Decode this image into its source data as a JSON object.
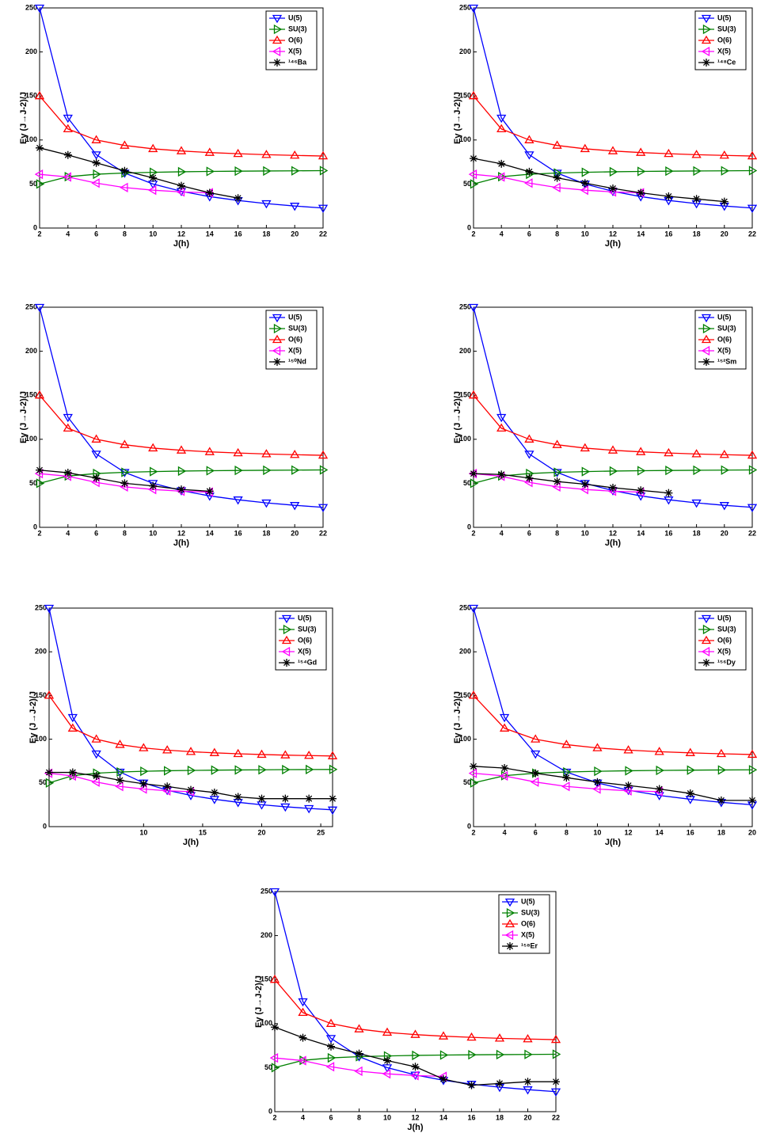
{
  "chart_data": [
    {
      "type": "line",
      "xlabel": "J(h)",
      "ylabel": "Eγ (J→J-2)/J",
      "legend": "upper right",
      "x": [
        2,
        4,
        6,
        8,
        10,
        12,
        14,
        16,
        18,
        20,
        22
      ],
      "xlim": [
        2,
        22
      ],
      "xticks": [
        2,
        4,
        6,
        8,
        10,
        12,
        14,
        16,
        18,
        20,
        22
      ],
      "ylim": [
        0,
        250
      ],
      "yticks": [
        0,
        50,
        100,
        150,
        200,
        250
      ],
      "series": [
        {
          "name": "U(5)",
          "color": "#0000ff",
          "marker": "v",
          "values": [
            250,
            125,
            83.3,
            62.5,
            50,
            41.7,
            35.7,
            31.3,
            27.8,
            25,
            22.7
          ]
        },
        {
          "name": "SU(3)",
          "color": "#008000",
          "marker": ">",
          "values": [
            50,
            58.3,
            61.1,
            62.5,
            63.3,
            63.9,
            64.3,
            64.6,
            64.8,
            65,
            65.2
          ]
        },
        {
          "name": "O(6)",
          "color": "#ff0000",
          "marker": "^",
          "values": [
            150,
            112.5,
            100,
            93.8,
            90,
            87.5,
            85.7,
            84.4,
            83.3,
            82.5,
            81.8
          ]
        },
        {
          "name": "X(5)",
          "color": "#ff00ff",
          "marker": "<",
          "values": [
            61,
            58,
            51,
            46,
            43,
            41,
            40,
            null,
            null,
            null,
            null
          ]
        },
        {
          "name": "¹⁴⁶Ba",
          "color": "#000000",
          "marker": "*",
          "values": [
            91,
            83,
            74,
            65,
            57,
            48,
            40,
            34,
            null,
            null,
            null
          ]
        }
      ]
    },
    {
      "type": "line",
      "xlabel": "J(h)",
      "ylabel": "Eγ (J→J-2)/J",
      "legend": "upper right",
      "x": [
        2,
        4,
        6,
        8,
        10,
        12,
        14,
        16,
        18,
        20,
        22
      ],
      "xlim": [
        2,
        22
      ],
      "xticks": [
        2,
        4,
        6,
        8,
        10,
        12,
        14,
        16,
        18,
        20,
        22
      ],
      "ylim": [
        0,
        250
      ],
      "yticks": [
        0,
        50,
        100,
        150,
        200,
        250
      ],
      "series": [
        {
          "name": "U(5)",
          "color": "#0000ff",
          "marker": "v",
          "values": [
            250,
            125,
            83.3,
            62.5,
            50,
            41.7,
            35.7,
            31.3,
            27.8,
            25,
            22.7
          ]
        },
        {
          "name": "SU(3)",
          "color": "#008000",
          "marker": ">",
          "values": [
            50,
            58.3,
            61.1,
            62.5,
            63.3,
            63.9,
            64.3,
            64.6,
            64.8,
            65,
            65.2
          ]
        },
        {
          "name": "O(6)",
          "color": "#ff0000",
          "marker": "^",
          "values": [
            150,
            112.5,
            100,
            93.8,
            90,
            87.5,
            85.7,
            84.4,
            83.3,
            82.5,
            81.8
          ]
        },
        {
          "name": "X(5)",
          "color": "#ff00ff",
          "marker": "<",
          "values": [
            61,
            58,
            51,
            46,
            43,
            41,
            40,
            null,
            null,
            null,
            null
          ]
        },
        {
          "name": "¹⁴⁸Ce",
          "color": "#000000",
          "marker": "*",
          "values": [
            79,
            73,
            64,
            57,
            51,
            45,
            40,
            36,
            33,
            30,
            null
          ]
        }
      ]
    },
    {
      "type": "line",
      "xlabel": "J(h)",
      "ylabel": "Eγ (J→J-2)/J",
      "legend": "upper right",
      "x": [
        2,
        4,
        6,
        8,
        10,
        12,
        14,
        16,
        18,
        20,
        22
      ],
      "xlim": [
        2,
        22
      ],
      "xticks": [
        2,
        4,
        6,
        8,
        10,
        12,
        14,
        16,
        18,
        20,
        22
      ],
      "ylim": [
        0,
        250
      ],
      "yticks": [
        0,
        50,
        100,
        150,
        200,
        250
      ],
      "series": [
        {
          "name": "U(5)",
          "color": "#0000ff",
          "marker": "v",
          "values": [
            250,
            125,
            83.3,
            62.5,
            50,
            41.7,
            35.7,
            31.3,
            27.8,
            25,
            22.7
          ]
        },
        {
          "name": "SU(3)",
          "color": "#008000",
          "marker": ">",
          "values": [
            50,
            58.3,
            61.1,
            62.5,
            63.3,
            63.9,
            64.3,
            64.6,
            64.8,
            65,
            65.2
          ]
        },
        {
          "name": "O(6)",
          "color": "#ff0000",
          "marker": "^",
          "values": [
            150,
            112.5,
            100,
            93.8,
            90,
            87.5,
            85.7,
            84.4,
            83.3,
            82.5,
            81.8
          ]
        },
        {
          "name": "X(5)",
          "color": "#ff00ff",
          "marker": "<",
          "values": [
            61,
            58,
            51,
            46,
            43,
            41,
            40,
            null,
            null,
            null,
            null
          ]
        },
        {
          "name": "¹⁵⁰Nd",
          "color": "#000000",
          "marker": "*",
          "values": [
            65,
            62,
            56,
            50,
            47,
            43,
            41,
            null,
            null,
            null,
            null
          ]
        }
      ]
    },
    {
      "type": "line",
      "xlabel": "J(h)",
      "ylabel": "Eγ (J→J-2)/J",
      "legend": "upper right",
      "x": [
        2,
        4,
        6,
        8,
        10,
        12,
        14,
        16,
        18,
        20,
        22
      ],
      "xlim": [
        2,
        22
      ],
      "xticks": [
        2,
        4,
        6,
        8,
        10,
        12,
        14,
        16,
        18,
        20,
        22
      ],
      "ylim": [
        0,
        250
      ],
      "yticks": [
        0,
        50,
        100,
        150,
        200,
        250
      ],
      "series": [
        {
          "name": "U(5)",
          "color": "#0000ff",
          "marker": "v",
          "values": [
            250,
            125,
            83.3,
            62.5,
            50,
            41.7,
            35.7,
            31.3,
            27.8,
            25,
            22.7
          ]
        },
        {
          "name": "SU(3)",
          "color": "#008000",
          "marker": ">",
          "values": [
            50,
            58.3,
            61.1,
            62.5,
            63.3,
            63.9,
            64.3,
            64.6,
            64.8,
            65,
            65.2
          ]
        },
        {
          "name": "O(6)",
          "color": "#ff0000",
          "marker": "^",
          "values": [
            150,
            112.5,
            100,
            93.8,
            90,
            87.5,
            85.7,
            84.4,
            83.3,
            82.5,
            81.8
          ]
        },
        {
          "name": "X(5)",
          "color": "#ff00ff",
          "marker": "<",
          "values": [
            61,
            58,
            51,
            46,
            43,
            41,
            40,
            null,
            null,
            null,
            null
          ]
        },
        {
          "name": "¹⁵²Sm",
          "color": "#000000",
          "marker": "*",
          "values": [
            61,
            60,
            56,
            52,
            49,
            45,
            42,
            39,
            null,
            null,
            null
          ]
        }
      ]
    },
    {
      "type": "line",
      "xlabel": "J(h)",
      "ylabel": "Eγ (J→J-2)/J",
      "legend": "upper right",
      "x": [
        2,
        4,
        6,
        8,
        10,
        12,
        14,
        16,
        18,
        20,
        22,
        24,
        26
      ],
      "xlim": [
        2,
        26
      ],
      "xticks": [
        10,
        15,
        20,
        25
      ],
      "ylim": [
        0,
        250
      ],
      "yticks": [
        0,
        50,
        100,
        150,
        200,
        250
      ],
      "series": [
        {
          "name": "U(5)",
          "color": "#0000ff",
          "marker": "v",
          "values": [
            250,
            125,
            83.3,
            62.5,
            50,
            41.7,
            35.7,
            31.3,
            27.8,
            25,
            22.7,
            20.8,
            19.2
          ]
        },
        {
          "name": "SU(3)",
          "color": "#008000",
          "marker": ">",
          "values": [
            50,
            58.3,
            61.1,
            62.5,
            63.3,
            63.9,
            64.3,
            64.6,
            64.8,
            65,
            65.2,
            65.3,
            65.4
          ]
        },
        {
          "name": "O(6)",
          "color": "#ff0000",
          "marker": "^",
          "values": [
            150,
            112.5,
            100,
            93.8,
            90,
            87.5,
            85.7,
            84.4,
            83.3,
            82.5,
            81.8,
            81.3,
            80.8
          ]
        },
        {
          "name": "X(5)",
          "color": "#ff00ff",
          "marker": "<",
          "values": [
            61,
            58,
            51,
            46,
            43,
            41,
            40,
            null,
            null,
            null,
            null,
            null,
            null
          ]
        },
        {
          "name": "¹⁵⁴Gd",
          "color": "#000000",
          "marker": "*",
          "values": [
            62,
            62,
            58,
            53,
            49,
            46,
            42,
            39,
            34,
            32,
            32,
            32,
            32
          ]
        }
      ]
    },
    {
      "type": "line",
      "xlabel": "J(h)",
      "ylabel": "Eγ (J→J-2)/J",
      "legend": "upper right",
      "x": [
        2,
        4,
        6,
        8,
        10,
        12,
        14,
        16,
        18,
        20
      ],
      "xlim": [
        2,
        20
      ],
      "xticks": [
        2,
        4,
        6,
        8,
        10,
        12,
        14,
        16,
        18,
        20
      ],
      "ylim": [
        0,
        250
      ],
      "yticks": [
        0,
        50,
        100,
        150,
        200,
        250
      ],
      "series": [
        {
          "name": "U(5)",
          "color": "#0000ff",
          "marker": "v",
          "values": [
            250,
            125,
            83.3,
            62.5,
            50,
            41.7,
            35.7,
            31.3,
            27.8,
            25
          ]
        },
        {
          "name": "SU(3)",
          "color": "#008000",
          "marker": ">",
          "values": [
            50,
            58.3,
            61.1,
            62.5,
            63.3,
            63.9,
            64.3,
            64.6,
            64.8,
            65
          ]
        },
        {
          "name": "O(6)",
          "color": "#ff0000",
          "marker": "^",
          "values": [
            150,
            112.5,
            100,
            93.8,
            90,
            87.5,
            85.7,
            84.4,
            83.3,
            82.5
          ]
        },
        {
          "name": "X(5)",
          "color": "#ff00ff",
          "marker": "<",
          "values": [
            61,
            58,
            51,
            46,
            43,
            41,
            40,
            null,
            null,
            null
          ]
        },
        {
          "name": "¹⁵⁶Dy",
          "color": "#000000",
          "marker": "*",
          "values": [
            69,
            67,
            61,
            56,
            51,
            47,
            43,
            38,
            30,
            30
          ]
        }
      ]
    },
    {
      "type": "line",
      "xlabel": "J(h)",
      "ylabel": "Eγ (J→J-2)/J",
      "legend": "upper right",
      "x": [
        2,
        4,
        6,
        8,
        10,
        12,
        14,
        16,
        18,
        20,
        22
      ],
      "xlim": [
        2,
        22
      ],
      "xticks": [
        2,
        4,
        6,
        8,
        10,
        12,
        14,
        16,
        18,
        20,
        22
      ],
      "ylim": [
        0,
        250
      ],
      "yticks": [
        0,
        50,
        100,
        150,
        200,
        250
      ],
      "series": [
        {
          "name": "U(5)",
          "color": "#0000ff",
          "marker": "v",
          "values": [
            250,
            125,
            83.3,
            62.5,
            50,
            41.7,
            35.7,
            31.3,
            27.8,
            25,
            22.7
          ]
        },
        {
          "name": "SU(3)",
          "color": "#008000",
          "marker": ">",
          "values": [
            50,
            58.3,
            61.1,
            62.5,
            63.3,
            63.9,
            64.3,
            64.6,
            64.8,
            65,
            65.2
          ]
        },
        {
          "name": "O(6)",
          "color": "#ff0000",
          "marker": "^",
          "values": [
            150,
            112.5,
            100,
            93.8,
            90,
            87.5,
            85.7,
            84.4,
            83.3,
            82.5,
            81.8
          ]
        },
        {
          "name": "X(5)",
          "color": "#ff00ff",
          "marker": "<",
          "values": [
            61,
            58,
            51,
            46,
            43,
            41,
            40,
            null,
            null,
            null,
            null
          ]
        },
        {
          "name": "¹⁵⁸Er",
          "color": "#000000",
          "marker": "*",
          "values": [
            96,
            84,
            74,
            66,
            58,
            51,
            37,
            30,
            32,
            34,
            34
          ]
        }
      ]
    }
  ]
}
